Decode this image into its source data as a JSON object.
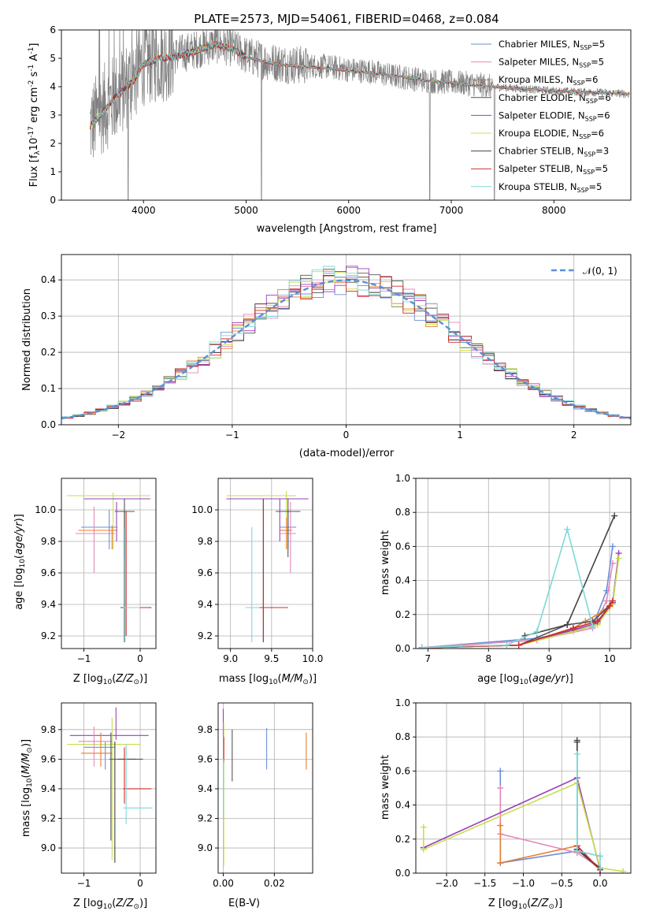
{
  "figure_title": "PLATE=2573, MJD=54061, FIBERID=0468, z=0.084",
  "colors": {
    "chabrier_miles": "#6a8fd8",
    "salpeter_miles": "#e589b8",
    "kroupa_miles": "#e57f34",
    "chabrier_elodie": "#555555",
    "salpeter_elodie": "#9b3fb8",
    "kroupa_elodie": "#c6e04a",
    "chabrier_stelib": "#444444",
    "salpeter_stelib": "#d12a2a",
    "kroupa_stelib": "#7fd8d8",
    "spectrum_data": "#808080",
    "gaussian": "#5b8fd8"
  },
  "legend_models": [
    {
      "name": "Chabrier MILES, N",
      "sub": "SSP",
      "val": "=5"
    },
    {
      "name": "Salpeter MILES, N",
      "sub": "SSP",
      "val": "=5"
    },
    {
      "name": "Kroupa MILES, N",
      "sub": "SSP",
      "val": "=6"
    },
    {
      "name": "Chabrier ELODIE, N",
      "sub": "SSP",
      "val": "=6"
    },
    {
      "name": "Salpeter ELODIE, N",
      "sub": "SSP",
      "val": "=6"
    },
    {
      "name": "Kroupa ELODIE, N",
      "sub": "SSP",
      "val": "=6"
    },
    {
      "name": "Chabrier STELIB, N",
      "sub": "SSP",
      "val": "=3"
    },
    {
      "name": "Salpeter STELIB, N",
      "sub": "SSP",
      "val": "=5"
    },
    {
      "name": "Kroupa STELIB, N",
      "sub": "SSP",
      "val": "=5"
    }
  ],
  "chart_data": [
    {
      "id": "spectrum",
      "type": "line",
      "title": "PLATE=2573, MJD=54061, FIBERID=0468, z=0.084",
      "xlabel": "wavelength [Angstrom, rest frame]",
      "ylabel_parts": [
        "Flux [f",
        "λ",
        "10",
        "-17",
        " erg cm",
        "-2",
        " s",
        "-1",
        " A",
        "-1",
        "]"
      ],
      "xlim": [
        3200,
        8750
      ],
      "ylim": [
        0,
        6
      ],
      "xticks": [
        4000,
        5000,
        6000,
        7000,
        8000
      ],
      "yticks": [
        0,
        1,
        2,
        3,
        4,
        5,
        6
      ],
      "grid": false,
      "legend": "top-right",
      "data_curve": {
        "x": [
          3480,
          3600,
          3750,
          3900,
          4000,
          4150,
          4300,
          4500,
          4700,
          4850,
          5000,
          5200,
          5400,
          5600,
          5800,
          6000,
          6200,
          6400,
          6600,
          6800,
          7000,
          7200,
          7400,
          7600,
          7800,
          8000,
          8200,
          8400,
          8700
        ],
        "y": [
          2.6,
          3.2,
          3.7,
          4.3,
          4.9,
          5.0,
          5.1,
          5.3,
          5.5,
          5.4,
          5.1,
          4.9,
          4.8,
          4.75,
          4.7,
          4.6,
          4.55,
          4.4,
          4.3,
          4.2,
          4.15,
          4.1,
          4.0,
          3.95,
          3.9,
          3.85,
          3.82,
          3.8,
          3.75
        ]
      },
      "model_curve": {
        "x": [
          3480,
          3600,
          3750,
          3900,
          4000,
          4150,
          4300,
          4500,
          4700,
          4850,
          5000,
          5200,
          5400,
          5600,
          5800,
          6000,
          6200,
          6400,
          6600,
          6800,
          7000,
          7200,
          7400,
          7600,
          7800,
          8000,
          8200,
          8400,
          8700
        ],
        "y": [
          2.6,
          3.1,
          3.7,
          4.2,
          4.8,
          5.0,
          5.05,
          5.25,
          5.5,
          5.35,
          5.05,
          4.85,
          4.75,
          4.7,
          4.65,
          4.55,
          4.5,
          4.4,
          4.3,
          4.2,
          4.15,
          4.05,
          4.0,
          3.95,
          3.9,
          3.85,
          3.82,
          3.8,
          3.75
        ]
      }
    },
    {
      "id": "residuals",
      "type": "step",
      "xlabel": "(data-model)/error",
      "ylabel": "Normed distribution",
      "xlim": [
        -2.5,
        2.5
      ],
      "ylim": [
        0,
        0.47
      ],
      "xticks": [
        -2,
        -1,
        0,
        1,
        2
      ],
      "yticks": [
        0.0,
        0.1,
        0.2,
        0.3,
        0.4
      ],
      "grid": true,
      "legend": "top-right",
      "gaussian_label": "𝒩(0, 1)"
    },
    {
      "id": "age-vs-Z",
      "type": "errorbar",
      "xlabel_parts": [
        "Z [log",
        "10",
        "(",
        "Z/Z",
        "⊙",
        ")]"
      ],
      "ylabel_parts": [
        "age  [log",
        "10",
        "(",
        "age/yr",
        ")]"
      ],
      "xlim": [
        -1.4,
        0.28
      ],
      "ylim": [
        9.12,
        10.2
      ],
      "xticks": [
        -1,
        0
      ],
      "yticks": [
        9.2,
        9.4,
        9.6,
        9.8,
        10.0
      ],
      "grid": true
    },
    {
      "id": "age-vs-mass",
      "type": "errorbar",
      "xlabel_parts": [
        "mass [log",
        "10",
        "(",
        "M/M",
        "⊙",
        ")]"
      ],
      "xlim": [
        8.85,
        10.0
      ],
      "ylim": [
        9.12,
        10.2
      ],
      "xticks": [
        9.0,
        9.5,
        10.0
      ],
      "yticks": [
        9.2,
        9.4,
        9.6,
        9.8,
        10.0
      ],
      "grid": true
    },
    {
      "id": "weight-vs-age",
      "type": "line",
      "xlabel_parts": [
        "age  [log",
        "10",
        "(",
        "age/yr",
        ")]"
      ],
      "ylabel": "mass weight",
      "xlim": [
        6.8,
        10.35
      ],
      "ylim": [
        0,
        1.0
      ],
      "xticks": [
        7,
        8,
        9,
        10
      ],
      "yticks": [
        0.0,
        0.2,
        0.4,
        0.6,
        0.8,
        1.0
      ],
      "grid": true,
      "series": [
        {
          "color": "#6a8fd8",
          "x": [
            6.9,
            8.8,
            9.72,
            9.95,
            10.05
          ],
          "y": [
            0.005,
            0.06,
            0.13,
            0.34,
            0.6
          ]
        },
        {
          "color": "#e589b8",
          "x": [
            6.9,
            8.8,
            9.72,
            9.95,
            10.05
          ],
          "y": [
            0.005,
            0.05,
            0.12,
            0.28,
            0.5
          ]
        },
        {
          "color": "#e57f34",
          "x": [
            6.9,
            8.5,
            9.4,
            9.6,
            9.9,
            10.05
          ],
          "y": [
            0.005,
            0.02,
            0.12,
            0.16,
            0.22,
            0.28
          ]
        },
        {
          "color": "#555555",
          "x": [
            6.9,
            8.5,
            9.3,
            9.72,
            10.05
          ],
          "y": [
            0.005,
            0.02,
            0.14,
            0.16,
            0.27
          ]
        },
        {
          "color": "#9b3fb8",
          "x": [
            6.9,
            8.5,
            9.4,
            9.8,
            10.05,
            10.15
          ],
          "y": [
            0.005,
            0.02,
            0.11,
            0.15,
            0.27,
            0.56
          ]
        },
        {
          "color": "#c6e04a",
          "x": [
            6.9,
            8.5,
            9.4,
            9.8,
            10.05,
            10.15
          ],
          "y": [
            0.005,
            0.02,
            0.1,
            0.14,
            0.26,
            0.53
          ]
        },
        {
          "color": "#444444",
          "x": [
            8.6,
            9.3,
            10.08
          ],
          "y": [
            0.075,
            0.14,
            0.78
          ]
        },
        {
          "color": "#d12a2a",
          "x": [
            6.9,
            8.5,
            9.4,
            9.8,
            10.0,
            10.05
          ],
          "y": [
            0.005,
            0.02,
            0.12,
            0.16,
            0.25,
            0.28
          ]
        },
        {
          "color": "#7fd8d8",
          "x": [
            6.9,
            7.55,
            8.3,
            8.8,
            9.3,
            9.72
          ],
          "y": [
            0.005,
            0.015,
            0.02,
            0.1,
            0.7,
            0.13
          ]
        }
      ]
    },
    {
      "id": "mass-vs-Z",
      "type": "errorbar",
      "xlabel_parts": [
        "Z [log",
        "10",
        "(",
        "Z/Z",
        "⊙",
        ")]"
      ],
      "ylabel_parts": [
        "mass [log",
        "10",
        "(",
        "M/M",
        "⊙",
        ")]"
      ],
      "xlim": [
        -1.4,
        0.28
      ],
      "ylim": [
        8.83,
        9.98
      ],
      "xticks": [
        -1,
        0
      ],
      "yticks": [
        9.0,
        9.2,
        9.4,
        9.6,
        9.8
      ],
      "grid": true
    },
    {
      "id": "mass-vs-EBV",
      "type": "errorbar",
      "xlabel": "E(B-V)",
      "xlim": [
        -0.002,
        0.035
      ],
      "ylim": [
        8.83,
        9.98
      ],
      "xticks": [
        0.0,
        0.02
      ],
      "yticks": [
        9.0,
        9.2,
        9.4,
        9.6,
        9.8
      ],
      "grid": true
    },
    {
      "id": "weight-vs-Z",
      "type": "line",
      "xlabel_parts": [
        "Z [log",
        "10",
        "(",
        "Z/Z",
        "⊙",
        ")]"
      ],
      "ylabel": "mass weight",
      "xlim": [
        -2.4,
        0.4
      ],
      "ylim": [
        0,
        1.0
      ],
      "xticks": [
        -2.0,
        -1.5,
        -1.0,
        -0.5,
        0.0
      ],
      "yticks": [
        0.0,
        0.2,
        0.4,
        0.6,
        0.8,
        1.0
      ],
      "grid": true,
      "series": [
        {
          "color": "#6a8fd8",
          "x": [
            -1.3,
            -1.3,
            -0.3,
            0.0
          ],
          "y": [
            0.6,
            0.06,
            0.13,
            0.1
          ]
        },
        {
          "color": "#e589b8",
          "x": [
            -1.3,
            -1.3,
            -0.3,
            0.0
          ],
          "y": [
            0.5,
            0.23,
            0.12,
            0.03
          ]
        },
        {
          "color": "#e57f34",
          "x": [
            -1.3,
            -1.3,
            -0.3,
            0.0
          ],
          "y": [
            0.28,
            0.06,
            0.16,
            0.02
          ]
        },
        {
          "color": "#555555",
          "x": [
            -0.3,
            -0.3,
            0.0
          ],
          "y": [
            0.77,
            0.14,
            0.02
          ]
        },
        {
          "color": "#9b3fb8",
          "x": [
            -2.3,
            -0.3,
            0.0
          ],
          "y": [
            0.15,
            0.56,
            0.02
          ]
        },
        {
          "color": "#c6e04a",
          "x": [
            -2.3,
            -2.3,
            -0.3,
            0.0,
            0.3
          ],
          "y": [
            0.27,
            0.14,
            0.53,
            0.03,
            0.01
          ]
        },
        {
          "color": "#444444",
          "x": [
            -0.3,
            -0.3,
            0.0,
            0.0
          ],
          "y": [
            0.78,
            0.14,
            0.03,
            0.02
          ]
        },
        {
          "color": "#d12a2a",
          "x": [
            -0.3,
            0.0
          ],
          "y": [
            0.16,
            0.02
          ]
        },
        {
          "color": "#7fd8d8",
          "x": [
            -0.3,
            -0.3,
            0.0,
            0.0
          ],
          "y": [
            0.7,
            0.13,
            0.1,
            0.03
          ]
        }
      ]
    }
  ]
}
